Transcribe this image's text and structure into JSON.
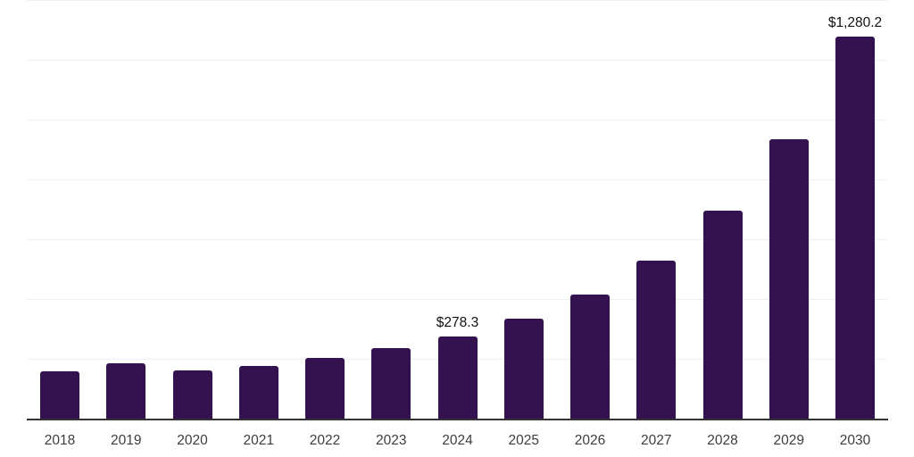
{
  "chart_data": {
    "type": "bar",
    "title": "",
    "xlabel": "",
    "ylabel": "",
    "categories": [
      "2018",
      "2019",
      "2020",
      "2021",
      "2022",
      "2023",
      "2024",
      "2025",
      "2026",
      "2027",
      "2028",
      "2029",
      "2030"
    ],
    "values": [
      161,
      188,
      164,
      180,
      207,
      238,
      278.3,
      337,
      418,
      532,
      700,
      938,
      1280.2
    ],
    "data_labels": {
      "2024": "$278.3",
      "2030": "$1,280.2"
    },
    "ylim": [
      0,
      1400
    ],
    "grid_step": 200,
    "gridlines": "horizontal",
    "legend": "none",
    "colors": {
      "bar": "#341250",
      "gridline": "#f0f0f0",
      "axis_line": "#333333",
      "tick_label": "#3d3d3d",
      "data_label": "#111111"
    }
  }
}
